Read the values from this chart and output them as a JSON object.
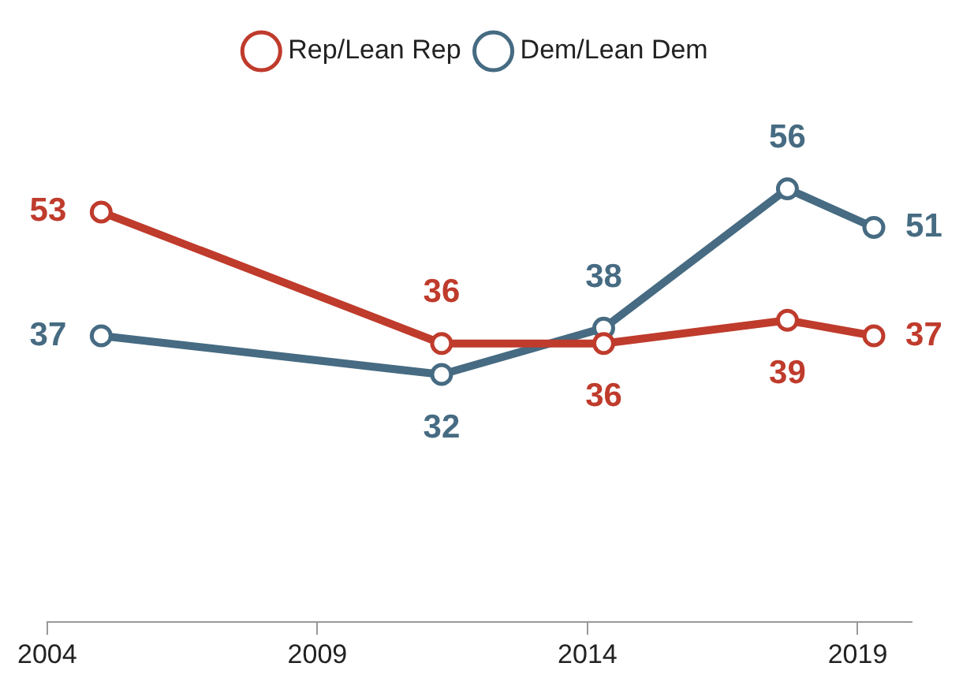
{
  "chart_data": {
    "type": "line",
    "x": [
      2005,
      2011.3,
      2014.3,
      2017.7,
      2019.3
    ],
    "series": [
      {
        "name": "Rep/Lean Rep",
        "color": "#bf3b2c",
        "values": [
          53,
          36,
          36,
          39,
          37
        ]
      },
      {
        "name": "Dem/Lean Dem",
        "color": "#466b82",
        "values": [
          37,
          32,
          38,
          56,
          51
        ]
      }
    ],
    "xlim": [
      2004,
      2020
    ],
    "xticks": [
      2004,
      2009,
      2014,
      2019
    ],
    "data_labels": true,
    "marker": "circle",
    "line_style": "solid",
    "legend": "top",
    "grid": false
  }
}
